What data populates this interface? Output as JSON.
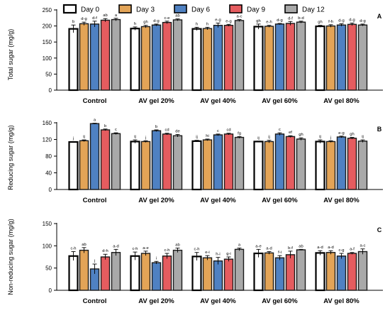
{
  "legend": [
    "Day 0",
    "Day 3",
    "Day 6",
    "Day 9",
    "Day 12"
  ],
  "series_colors": [
    "#ffffff",
    "#e3a457",
    "#4f81c2",
    "#e55c5f",
    "#a9a9a9"
  ],
  "series_edge_colors": [
    "#000000",
    "#1a1a1a",
    "#1a1a1a",
    "#1a1a1a",
    "#1a1a1a"
  ],
  "chart_data": [
    {
      "type": "bar",
      "panel_label": "A",
      "ylabel": "Total sugar (mg/g)",
      "ylim": [
        0,
        250
      ],
      "yticks": [
        0,
        50,
        100,
        150,
        200,
        250
      ],
      "categories": [
        "Control",
        "AV gel 20%",
        "AV gel 40%",
        "AV gel 60%",
        "AV gel 80%"
      ],
      "series": [
        {
          "name": "Day 0",
          "values": [
            191,
            192,
            191,
            198,
            199
          ],
          "errors": [
            12,
            5,
            5,
            8,
            3
          ],
          "letters": [
            "b",
            "h",
            "h",
            "gh",
            "gh"
          ]
        },
        {
          "name": "Day 3",
          "values": [
            207,
            198,
            192,
            199,
            200
          ],
          "errors": [
            5,
            4,
            4,
            3,
            4
          ],
          "letters": [
            "d-g",
            "gh",
            "h",
            "e-h",
            "f-h"
          ]
        },
        {
          "name": "Day 6",
          "values": [
            206,
            203,
            202,
            206,
            203
          ],
          "errors": [
            9,
            3,
            7,
            2,
            4
          ],
          "letters": [
            "d-f",
            "d-g",
            "e-g",
            "d-g",
            "d-g"
          ]
        },
        {
          "name": "Day 9",
          "values": [
            218,
            211,
            202,
            208,
            205
          ],
          "errors": [
            5,
            4,
            3,
            6,
            4
          ],
          "letters": [
            "ab",
            "c-e",
            "e-g",
            "d-f",
            "d-g"
          ]
        },
        {
          "name": "Day 12",
          "values": [
            220,
            219,
            217,
            212,
            203
          ],
          "errors": [
            4,
            3,
            3,
            3,
            3
          ],
          "letters": [
            "a",
            "ab",
            "a-c",
            "b-d",
            "d-g"
          ]
        }
      ]
    },
    {
      "type": "bar",
      "panel_label": "B",
      "ylabel": "Reducing sugar (mg/g)",
      "ylim": [
        0,
        160
      ],
      "yticks": [
        0,
        40,
        80,
        120,
        160
      ],
      "categories": [
        "Control",
        "AV gel 20%",
        "AV gel 40%",
        "AV gel 60%",
        "AV gel 80%"
      ],
      "series": [
        {
          "name": "Day 0",
          "values": [
            114,
            115,
            116,
            115,
            115
          ],
          "errors": [
            1,
            4,
            2,
            1,
            4
          ],
          "letters": [
            "j",
            "ij",
            "ij",
            "ij",
            "ij"
          ]
        },
        {
          "name": "Day 3",
          "values": [
            117,
            115,
            119,
            115,
            115
          ],
          "errors": [
            2,
            2,
            2,
            3,
            2
          ],
          "letters": [
            "ij",
            "j",
            "hi",
            "ij",
            "j"
          ]
        },
        {
          "name": "Day 6",
          "values": [
            158,
            141,
            131,
            133,
            126
          ],
          "errors": [
            1,
            2,
            2,
            3,
            2
          ],
          "letters": [
            "a",
            "b",
            "c",
            "c",
            "e-g"
          ]
        },
        {
          "name": "Day 9",
          "values": [
            143,
            133,
            133,
            127,
            123
          ],
          "errors": [
            2,
            2,
            2,
            2,
            2
          ],
          "letters": [
            "b",
            "cd",
            "cd",
            "ef",
            "gh"
          ]
        },
        {
          "name": "Day 12",
          "values": [
            134,
            129,
            125,
            121,
            116
          ],
          "errors": [
            2,
            3,
            2,
            3,
            3
          ],
          "letters": [
            "c",
            "de",
            "fg",
            "gh",
            "ij"
          ]
        }
      ]
    },
    {
      "type": "bar",
      "panel_label": "C",
      "ylabel": "Non-reducing sugar (mg/g)",
      "ylim": [
        0,
        150
      ],
      "yticks": [
        0,
        50,
        100,
        150
      ],
      "categories": [
        "Control",
        "AV gel 20%",
        "AV gel 40%",
        "AV gel 60%",
        "AV gel 80%"
      ],
      "series": [
        {
          "name": "Day 0",
          "values": [
            77,
            77,
            76,
            83,
            84
          ],
          "errors": [
            10,
            9,
            9,
            9,
            5
          ],
          "letters": [
            "c-h",
            "c-h",
            "c-h",
            "a-e",
            "a-d"
          ]
        },
        {
          "name": "Day 3",
          "values": [
            90,
            83,
            73,
            84,
            85
          ],
          "errors": [
            6,
            5,
            5,
            3,
            4
          ],
          "letters": [
            "ab",
            "a-e",
            "e-i",
            "a-d",
            "a-d"
          ]
        },
        {
          "name": "Day 6",
          "values": [
            48,
            62,
            66,
            73,
            77
          ],
          "errors": [
            11,
            3,
            8,
            5,
            6
          ],
          "letters": [
            "j",
            "i",
            "h-i",
            "f-i",
            "c-g"
          ]
        },
        {
          "name": "Day 9",
          "values": [
            75,
            77,
            70,
            80,
            83
          ],
          "errors": [
            6,
            6,
            5,
            8,
            2
          ],
          "letters": [
            "d-h",
            "c-h",
            "g-i",
            "b-f",
            "a-f"
          ]
        },
        {
          "name": "Day 12",
          "values": [
            85,
            90,
            92,
            91,
            87
          ],
          "errors": [
            7,
            5,
            3,
            1,
            6
          ],
          "letters": [
            "a-d",
            "ab",
            "a",
            "ab",
            "a-c"
          ]
        }
      ]
    }
  ]
}
